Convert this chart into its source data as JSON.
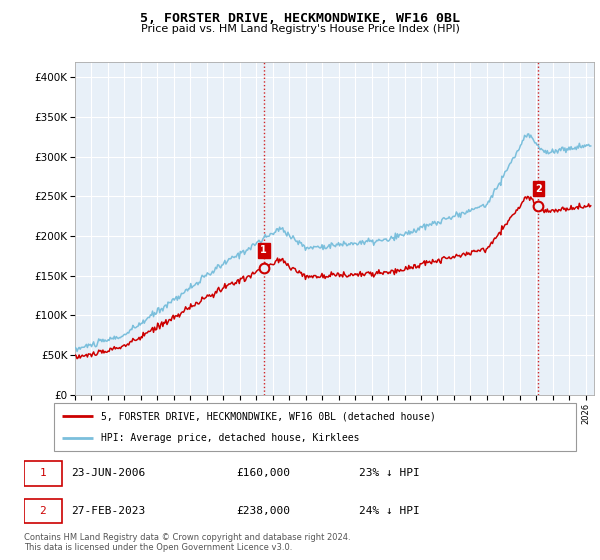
{
  "title": "5, FORSTER DRIVE, HECKMONDWIKE, WF16 0BL",
  "subtitle": "Price paid vs. HM Land Registry's House Price Index (HPI)",
  "sale1_date": "23-JUN-2006",
  "sale1_price": 160000,
  "sale1_label": "23% ↓ HPI",
  "sale2_date": "27-FEB-2023",
  "sale2_price": 238000,
  "sale2_label": "24% ↓ HPI",
  "legend_line1": "5, FORSTER DRIVE, HECKMONDWIKE, WF16 0BL (detached house)",
  "legend_line2": "HPI: Average price, detached house, Kirklees",
  "footer1": "Contains HM Land Registry data © Crown copyright and database right 2024.",
  "footer2": "This data is licensed under the Open Government Licence v3.0.",
  "hpi_color": "#7bbfdc",
  "price_color": "#cc0000",
  "vline_color": "#cc0000",
  "background_color": "#ffffff",
  "chart_bg": "#e8f0f8",
  "grid_color": "#ffffff",
  "ylim": [
    0,
    420000
  ],
  "yticks": [
    0,
    50000,
    100000,
    150000,
    200000,
    250000,
    300000,
    350000,
    400000
  ],
  "ytick_labels": [
    "£0",
    "£50K",
    "£100K",
    "£150K",
    "£200K",
    "£250K",
    "£300K",
    "£350K",
    "£400K"
  ],
  "xlim_start": 1995,
  "xlim_end": 2026.5
}
